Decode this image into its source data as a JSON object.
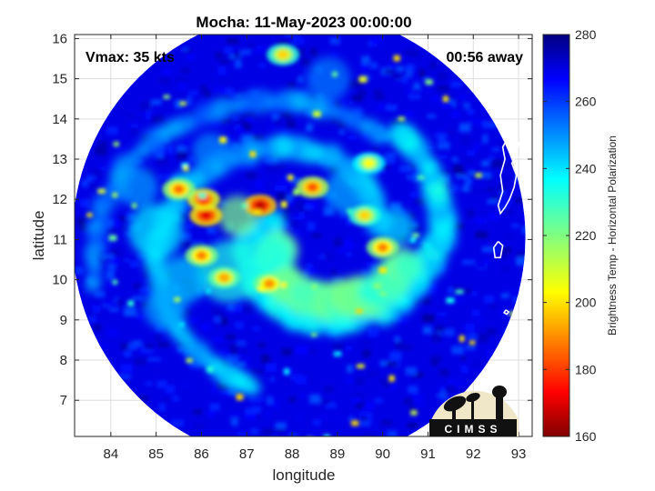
{
  "chart_data": {
    "type": "heatmap",
    "title": "Mocha: 11-May-2023 00:00:00",
    "xlabel": "longitude",
    "ylabel": "latitude",
    "xlim": [
      83.2,
      93.3
    ],
    "ylim": [
      6.1,
      16.1
    ],
    "xticks": [
      84,
      85,
      86,
      87,
      88,
      89,
      90,
      91,
      92,
      93
    ],
    "yticks": [
      7,
      8,
      9,
      10,
      11,
      12,
      13,
      14,
      15,
      16
    ],
    "grid": true,
    "annotations": {
      "vmax": "Vmax: 35 kts",
      "time_away": "00:56 away"
    },
    "colorbar": {
      "label": "Brightness Temp - Horizontal Polarization",
      "range": [
        160,
        280
      ],
      "ticks": [
        160,
        180,
        200,
        220,
        240,
        260,
        280
      ],
      "colormap": "jet"
    },
    "swath": {
      "center": [
        88.15,
        11.05
      ],
      "radius_deg": 5.0,
      "background_value": 268
    },
    "features": [
      {
        "type": "convective-core",
        "lon": 87.3,
        "lat": 11.85,
        "value": 168
      },
      {
        "type": "convective-core",
        "lon": 86.1,
        "lat": 11.6,
        "value": 172
      },
      {
        "type": "convective-core",
        "lon": 86.05,
        "lat": 12.0,
        "value": 178
      },
      {
        "type": "convective-core",
        "lon": 87.5,
        "lat": 9.9,
        "value": 192
      },
      {
        "type": "convective-core",
        "lon": 86.0,
        "lat": 10.6,
        "value": 190
      },
      {
        "type": "convective-core",
        "lon": 85.5,
        "lat": 12.25,
        "value": 188
      },
      {
        "type": "convective-core",
        "lon": 88.45,
        "lat": 12.3,
        "value": 185
      },
      {
        "type": "convective-core",
        "lon": 90.0,
        "lat": 10.8,
        "value": 190
      },
      {
        "type": "convective-core",
        "lon": 89.7,
        "lat": 12.9,
        "value": 205
      },
      {
        "type": "convective-core",
        "lon": 87.8,
        "lat": 15.6,
        "value": 200
      },
      {
        "type": "convective-core",
        "lon": 89.6,
        "lat": 11.6,
        "value": 200
      },
      {
        "type": "convective-core",
        "lon": 86.5,
        "lat": 10.05,
        "value": 195
      }
    ],
    "logo": {
      "text": "CIMSS"
    }
  },
  "colors": {
    "axes_frame": "#262626",
    "grid": "#e0e0e0",
    "coastline": "#ffffff"
  }
}
